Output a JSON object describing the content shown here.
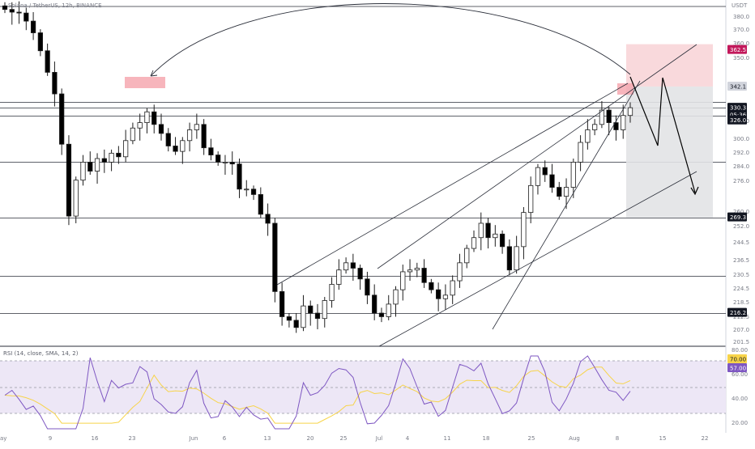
{
  "symbol_header": "Solana / TetherUS, 12h, BINANCE",
  "currency": "USDT",
  "colors": {
    "bull_body": "#ffffff",
    "bear_body": "#000000",
    "wick": "#1e1e1e",
    "level_line": "#2a2e39",
    "stop_zone": "#f8d2d6",
    "target_zone": "#e2e3e6",
    "highlight_box": "#f5a3ab",
    "rsi_line": "#7e57c2",
    "rsi_ma": "#f7d44a",
    "rsi_band": "#ede7f6",
    "label_red": "#c2185b",
    "label_dark": "#131722"
  },
  "price_scale": {
    "ticks": [
      "380.0",
      "370.0",
      "360.0",
      "350.0",
      "310.0",
      "300.0",
      "292.0",
      "284.0",
      "276.0",
      "260.0",
      "252.0",
      "244.5",
      "236.5",
      "230.5",
      "224.5",
      "218.5",
      "212.5",
      "207.0",
      "201.5"
    ],
    "labels": {
      "stop": "362.5",
      "entry_top": "342.1",
      "current_price": "330.3",
      "countdown": "05:36:09",
      "price_below": "326.0",
      "target": "269.3",
      "level_low": "216.2"
    }
  },
  "time_axis": [
    "ay",
    "9",
    "16",
    "23",
    "Jun",
    "6",
    "13",
    "20",
    "25",
    "Jul",
    "4",
    "11",
    "18",
    "25",
    "Aug",
    "8",
    "15",
    "22"
  ],
  "rsi": {
    "title": "RSI (14, close, SMA, 14, 2)",
    "upper_label": "70.00",
    "lower_label": "57.00",
    "ticks": [
      "80.00",
      "60.00",
      "40.00",
      "20.00"
    ]
  },
  "chart_data": {
    "type": "candlestick",
    "title": "Solana / TetherUS, 12h, BINANCE",
    "ylabel": "USDT",
    "xlabel": "",
    "ylim": [
      198,
      388
    ],
    "horizontal_levels": [
      333.5,
      330.3,
      326.0,
      300.0,
      269.3,
      236.5,
      216.2
    ],
    "trade_setup": {
      "entry": 342.1,
      "stop": 362.5,
      "target": 269.3
    },
    "series": [
      {
        "name": "Price",
        "values": [
          385.0,
          383.5,
          383.0,
          378.5,
          372.0,
          362.0,
          350.0,
          338.0,
          310.0,
          270.0,
          290.0,
          300.0,
          295.0,
          302.0,
          300.0,
          305.0,
          303.0,
          312.0,
          319.0,
          322.0,
          328.0,
          321.0,
          316.0,
          309.0,
          306.0,
          312.0,
          318.0,
          321.0,
          308.0,
          304.0,
          300.0,
          300.0,
          299.0,
          285.0,
          285.0,
          282.0,
          271.0,
          266.0,
          228.0,
          214.0,
          212.0,
          208.0,
          220.0,
          216.0,
          213.0,
          223.0,
          232.0,
          240.0,
          244.0,
          241.0,
          235.0,
          226.0,
          216.0,
          214.0,
          221.0,
          229.0,
          239.0,
          240.0,
          241.0,
          233.0,
          229.0,
          224.0,
          226.0,
          234.0,
          244.0,
          252.0,
          258.0,
          266.0,
          258.0,
          260.0,
          253.0,
          240.0,
          253.0,
          272.0,
          287.0,
          297.0,
          293.0,
          286.0,
          281.0,
          286.0,
          300.0,
          311.0,
          318.0,
          321.0,
          329.0,
          322.0,
          318.0,
          326.0,
          330.3
        ]
      }
    ]
  }
}
